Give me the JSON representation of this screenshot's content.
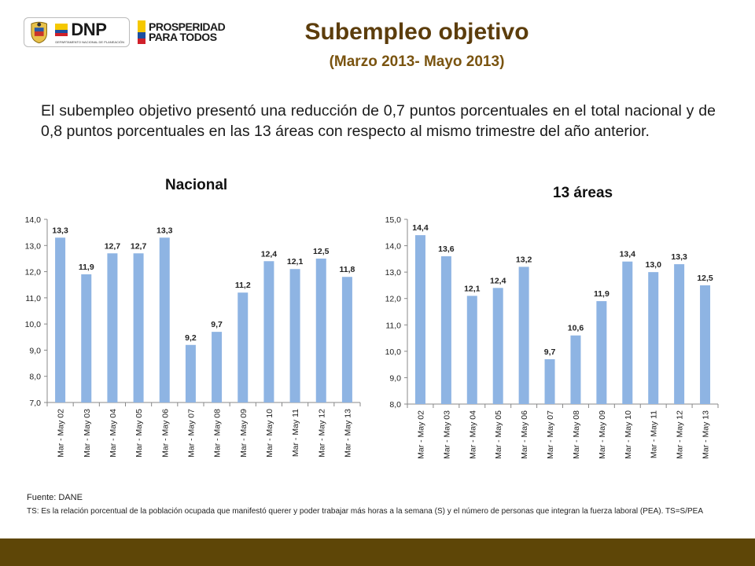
{
  "header": {
    "dnp_logo_text": "DNP",
    "dnp_logo_sub": "DEPARTAMENTO NACIONAL DE PLANEACIÓN",
    "prosperidad_line1": "PROSPERIDAD",
    "prosperidad_line2": "PARA TODOS",
    "title": "Subempleo objetivo",
    "subtitle": "(Marzo 2013- Mayo 2013)"
  },
  "paragraph": "El subempleo objetivo presentó una reducción de 0,7 puntos porcentuales en el total nacional y de 0,8 puntos porcentuales en las 13 áreas con respecto al mismo trimestre del año anterior.",
  "colors": {
    "bar": "#8eb4e3",
    "title": "#5c3d0c",
    "bottom_bar": "#5e4607"
  },
  "chart_data": [
    {
      "type": "bar",
      "title": "Nacional",
      "categories": [
        "Mar - May 02",
        "Mar - May 03",
        "Mar - May 04",
        "Mar - May 05",
        "Mar - May 06",
        "Mar - May 07",
        "Mar - May 08",
        "Mar - May 09",
        "Mar - May 10",
        "Mar - May 11",
        "Mar - May 12",
        "Mar - May 13"
      ],
      "values": [
        13.3,
        11.9,
        12.7,
        12.7,
        13.3,
        9.2,
        9.7,
        11.2,
        12.4,
        12.1,
        12.5,
        11.8
      ],
      "value_labels": [
        "13,3",
        "11,9",
        "12,7",
        "12,7",
        "13,3",
        "9,2",
        "9,7",
        "11,2",
        "12,4",
        "12,1",
        "12,5",
        "11,8"
      ],
      "ylim": [
        7.0,
        14.0
      ],
      "yticks": [
        "7,0",
        "8,0",
        "9,0",
        "10,0",
        "11,0",
        "12,0",
        "13,0",
        "14,0"
      ],
      "grid": false
    },
    {
      "type": "bar",
      "title": "13 áreas",
      "categories": [
        "Mar - May 02",
        "Mar - May 03",
        "Mar - May 04",
        "Mar - May 05",
        "Mar - May 06",
        "Mar - May 07",
        "Mar - May 08",
        "Mar - May 09",
        "Mar - May 10",
        "Mar - May 11",
        "Mar - May 12",
        "Mar - May 13"
      ],
      "values": [
        14.4,
        13.6,
        12.1,
        12.4,
        13.2,
        9.7,
        10.6,
        11.9,
        13.4,
        13.0,
        13.3,
        12.5
      ],
      "value_labels": [
        "14,4",
        "13,6",
        "12,1",
        "12,4",
        "13,2",
        "9,7",
        "10,6",
        "11,9",
        "13,4",
        "13,0",
        "13,3",
        "12,5"
      ],
      "ylim": [
        8.0,
        15.0
      ],
      "yticks": [
        "8,0",
        "9,0",
        "10,0",
        "11,0",
        "12,0",
        "13,0",
        "14,0",
        "15,0"
      ],
      "grid": false
    }
  ],
  "footer": {
    "source": "Fuente: DANE",
    "note": "TS: Es la relación porcentual de la población ocupada que manifestó querer y poder trabajar más horas a la semana (S) y el número de personas que integran la fuerza laboral (PEA). TS=S/PEA"
  }
}
